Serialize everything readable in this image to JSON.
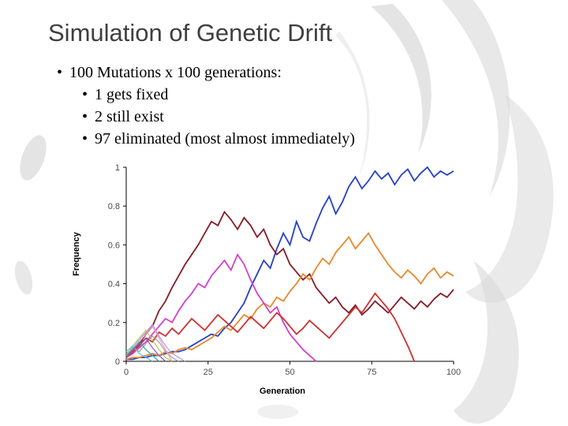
{
  "slide": {
    "title": "Simulation of Genetic Drift",
    "bullet_char": "•",
    "bullets": [
      {
        "level": 1,
        "text": "100 Mutations x 100 generations:"
      },
      {
        "level": 2,
        "text": "1 gets fixed"
      },
      {
        "level": 2,
        "text": "2 still exist"
      },
      {
        "level": 2,
        "text": "97 eliminated (most almost immediately)"
      }
    ]
  },
  "chart_data": {
    "type": "line",
    "title": "",
    "xlabel": "Generation",
    "ylabel": "Frequency",
    "xlim": [
      0,
      100
    ],
    "ylim": [
      0,
      1
    ],
    "xticks": [
      0,
      25,
      50,
      75,
      100
    ],
    "xtick_labels": [
      "0",
      "25",
      "50",
      "75",
      "100"
    ],
    "yticks": [
      0,
      0.2,
      0.4,
      0.6,
      0.8,
      1
    ],
    "ytick_labels": [
      "0",
      "0.2",
      "0.4",
      "0.6",
      "0.8",
      "1"
    ],
    "grid": false,
    "legend": "none",
    "axis_color": "#000000",
    "x_step": 2,
    "series": [
      {
        "name": "blue-fixed",
        "color": "#2540c8",
        "width": 1.8,
        "x_start": 0,
        "values": [
          0.01,
          0.01,
          0.02,
          0.02,
          0.03,
          0.03,
          0.04,
          0.05,
          0.05,
          0.06,
          0.08,
          0.1,
          0.12,
          0.14,
          0.13,
          0.17,
          0.2,
          0.25,
          0.3,
          0.38,
          0.45,
          0.52,
          0.48,
          0.58,
          0.66,
          0.6,
          0.72,
          0.64,
          0.62,
          0.71,
          0.79,
          0.85,
          0.76,
          0.82,
          0.9,
          0.95,
          0.89,
          0.93,
          0.98,
          0.94,
          0.97,
          0.91,
          0.96,
          0.99,
          0.93,
          0.97,
          1.0,
          0.95,
          0.98,
          0.96,
          0.98
        ]
      },
      {
        "name": "dark-red-surviving",
        "color": "#841c26",
        "width": 1.8,
        "x_start": 0,
        "values": [
          0.02,
          0.05,
          0.09,
          0.14,
          0.18,
          0.26,
          0.31,
          0.38,
          0.44,
          0.5,
          0.55,
          0.6,
          0.66,
          0.72,
          0.7,
          0.77,
          0.73,
          0.68,
          0.74,
          0.7,
          0.64,
          0.68,
          0.6,
          0.55,
          0.58,
          0.5,
          0.46,
          0.42,
          0.45,
          0.38,
          0.34,
          0.3,
          0.33,
          0.28,
          0.25,
          0.29,
          0.24,
          0.27,
          0.31,
          0.28,
          0.25,
          0.29,
          0.33,
          0.3,
          0.27,
          0.31,
          0.28,
          0.32,
          0.35,
          0.33,
          0.37
        ]
      },
      {
        "name": "orange-surviving",
        "color": "#e8882a",
        "width": 1.8,
        "x_start": 0,
        "values": [
          0.01,
          0.02,
          0.02,
          0.03,
          0.04,
          0.03,
          0.05,
          0.04,
          0.06,
          0.07,
          0.06,
          0.08,
          0.1,
          0.12,
          0.15,
          0.18,
          0.16,
          0.2,
          0.24,
          0.22,
          0.27,
          0.3,
          0.28,
          0.33,
          0.31,
          0.36,
          0.4,
          0.45,
          0.42,
          0.48,
          0.53,
          0.5,
          0.56,
          0.6,
          0.64,
          0.58,
          0.62,
          0.66,
          0.6,
          0.55,
          0.5,
          0.46,
          0.43,
          0.47,
          0.44,
          0.4,
          0.45,
          0.48,
          0.43,
          0.46,
          0.44
        ]
      },
      {
        "name": "magenta-eliminated",
        "color": "#d241cc",
        "width": 1.8,
        "x_start": 0,
        "values": [
          0.02,
          0.04,
          0.07,
          0.1,
          0.14,
          0.18,
          0.22,
          0.2,
          0.26,
          0.31,
          0.35,
          0.4,
          0.38,
          0.44,
          0.48,
          0.52,
          0.47,
          0.55,
          0.5,
          0.42,
          0.35,
          0.3,
          0.25,
          0.28,
          0.2,
          0.14,
          0.1,
          0.06,
          0.03,
          0.0
        ]
      },
      {
        "name": "red-eliminated",
        "color": "#d03030",
        "width": 1.8,
        "x_start": 0,
        "values": [
          0.02,
          0.05,
          0.08,
          0.12,
          0.1,
          0.15,
          0.13,
          0.17,
          0.14,
          0.18,
          0.22,
          0.19,
          0.16,
          0.2,
          0.24,
          0.21,
          0.18,
          0.15,
          0.19,
          0.23,
          0.2,
          0.17,
          0.21,
          0.25,
          0.22,
          0.18,
          0.14,
          0.17,
          0.21,
          0.18,
          0.15,
          0.12,
          0.16,
          0.2,
          0.24,
          0.28,
          0.25,
          0.3,
          0.35,
          0.31,
          0.27,
          0.22,
          0.15,
          0.08,
          0.0
        ]
      },
      {
        "name": "lavender-eliminated-early",
        "color": "#b29ae0",
        "width": 1.2,
        "x_start": 0,
        "values": [
          0.03,
          0.07,
          0.11,
          0.15,
          0.19,
          0.13,
          0.08,
          0.04,
          0.02,
          0.0
        ]
      },
      {
        "name": "gray-eliminated-early",
        "color": "#a0a0a0",
        "width": 1.2,
        "x_start": 0,
        "values": [
          0.04,
          0.07,
          0.05,
          0.09,
          0.13,
          0.1,
          0.05,
          0.02,
          0.0
        ]
      },
      {
        "name": "olive-eliminated-early",
        "color": "#bcc255",
        "width": 1.2,
        "x_start": 0,
        "values": [
          0.03,
          0.08,
          0.12,
          0.16,
          0.11,
          0.06,
          0.02,
          0.0
        ]
      },
      {
        "name": "pink-eliminated-early",
        "color": "#ef9fc0",
        "width": 1.2,
        "x_start": 0,
        "values": [
          0.02,
          0.06,
          0.1,
          0.14,
          0.18,
          0.12,
          0.06,
          0.0
        ]
      },
      {
        "name": "teal-eliminated-early",
        "color": "#2fa8a0",
        "width": 1.2,
        "x_start": 0,
        "values": [
          0.03,
          0.06,
          0.1,
          0.06,
          0.03,
          0.0
        ]
      },
      {
        "name": "cyan-eliminated-early",
        "color": "#5bc4e8",
        "width": 1.2,
        "x_start": 0,
        "values": [
          0.05,
          0.08,
          0.04,
          0.02,
          0.0
        ]
      },
      {
        "name": "purple-eliminated-early",
        "color": "#8057b8",
        "width": 1.2,
        "x_start": 0,
        "values": [
          0.02,
          0.06,
          0.09,
          0.12,
          0.07,
          0.03,
          0.0
        ]
      }
    ]
  }
}
